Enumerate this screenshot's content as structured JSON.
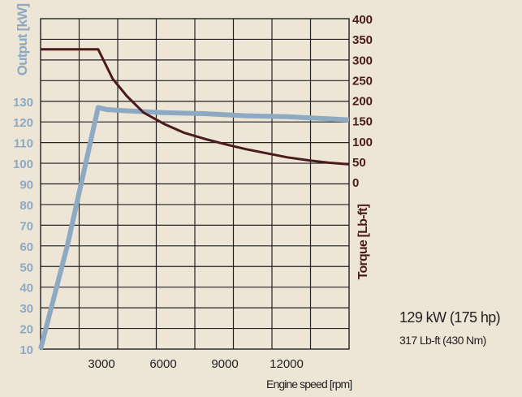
{
  "chart_data": {
    "type": "line",
    "xlabel": "Engine speed [rpm]",
    "x_ticks": [
      3000,
      6000,
      9000,
      12000
    ],
    "xlim": [
      0,
      15000
    ],
    "y_left": {
      "label": "Output [kW]",
      "ticks": [
        10,
        20,
        30,
        40,
        50,
        60,
        70,
        80,
        90,
        100,
        110,
        120,
        130
      ],
      "lim": [
        10,
        170
      ]
    },
    "y_right": {
      "label": "Torque [Lb-ft]",
      "ticks": [
        0,
        50,
        100,
        150,
        200,
        250,
        300,
        350,
        400
      ],
      "lim": [
        0,
        400
      ]
    },
    "grid": true,
    "series": [
      {
        "axis": "left",
        "color": "#8ea9c2",
        "x": [
          0,
          1300,
          2800,
          3200,
          4000,
          6000,
          8000,
          10000,
          12000,
          15000
        ],
        "y": [
          10,
          60,
          127,
          126,
          125.5,
          124.5,
          124,
          123,
          122.5,
          121
        ]
      },
      {
        "axis": "right",
        "color": "#4a1a1c",
        "x": [
          0,
          1000,
          2000,
          2800,
          3500,
          4200,
          5000,
          6000,
          7000,
          8000,
          9000,
          10000,
          11000,
          12000,
          13000,
          14000,
          15000
        ],
        "y": [
          325,
          325,
          325,
          325,
          253,
          210,
          170,
          142,
          120,
          105,
          92,
          80,
          70,
          60,
          53,
          47,
          43
        ]
      }
    ]
  },
  "rating": {
    "power": "129 kW (175 hp)",
    "torque": "317 Lb-ft (430 Nm)"
  }
}
